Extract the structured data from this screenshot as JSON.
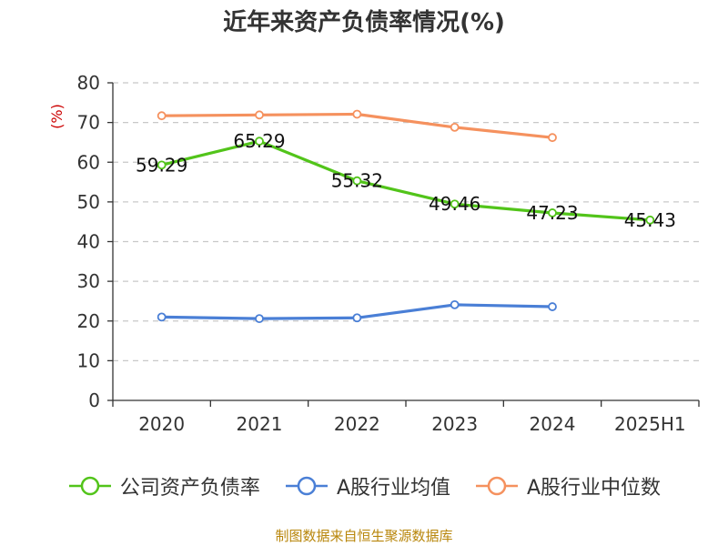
{
  "chart_data": {
    "type": "line",
    "title": "近年来资产负债率情况(%)",
    "ylabel": "(%)",
    "xlabel": "",
    "ylim": [
      0,
      80
    ],
    "yticks": [
      0,
      10,
      20,
      30,
      40,
      50,
      60,
      70,
      80
    ],
    "categories": [
      "2020",
      "2021",
      "2022",
      "2023",
      "2024",
      "2025H1"
    ],
    "grid": true,
    "legend_position": "bottom",
    "series": [
      {
        "name": "公司资产负债率",
        "color": "#52c41a",
        "values": [
          59.29,
          65.29,
          55.32,
          49.46,
          47.23,
          45.43
        ],
        "labels": [
          "59.29",
          "65.29",
          "55.32",
          "49.46",
          "47.23",
          "45.43"
        ]
      },
      {
        "name": "A股行业均值",
        "color": "#4a7fd6",
        "values": [
          21.0,
          20.6,
          20.8,
          24.1,
          23.6,
          null
        ]
      },
      {
        "name": "A股行业中位数",
        "color": "#f5915e",
        "values": [
          71.7,
          71.9,
          72.1,
          68.8,
          66.2,
          null
        ]
      }
    ],
    "source": "制图数据来自恒生聚源数据库"
  }
}
